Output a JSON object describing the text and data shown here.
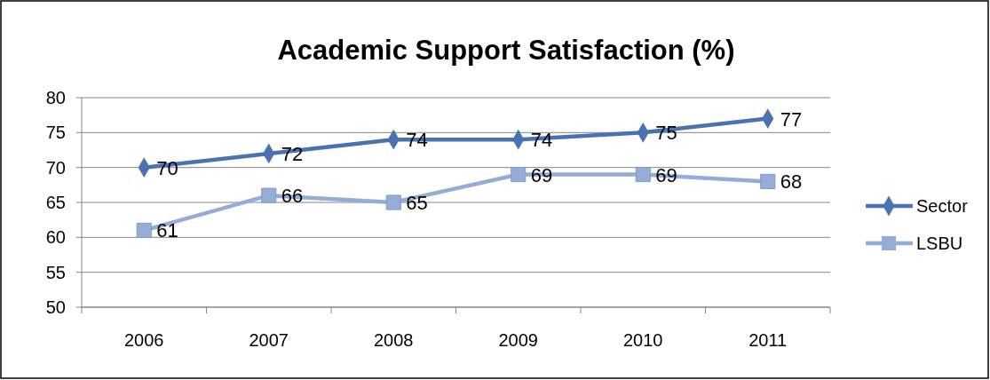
{
  "chart_data": {
    "type": "line",
    "title": "Academic Support Satisfaction (%)",
    "categories": [
      "2006",
      "2007",
      "2008",
      "2009",
      "2010",
      "2011"
    ],
    "series": [
      {
        "name": "Sector",
        "color": "#4a72b0",
        "marker": "diamond",
        "values": [
          70,
          72,
          74,
          74,
          75,
          77
        ]
      },
      {
        "name": "LSBU",
        "color": "#94acd6",
        "marker": "square",
        "values": [
          61,
          66,
          65,
          69,
          69,
          68
        ]
      }
    ],
    "ylim": [
      50,
      80
    ],
    "yticks": [
      50,
      55,
      60,
      65,
      70,
      75,
      80
    ],
    "grid": "y",
    "legend": "right",
    "data_labels": true
  }
}
